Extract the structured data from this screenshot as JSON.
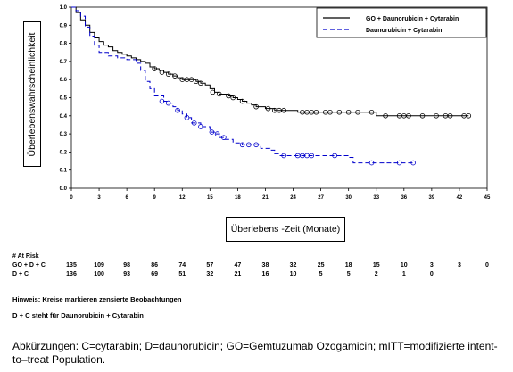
{
  "chart_data": {
    "type": "line",
    "xlabel": "Überlebens -Zeit (Monate)",
    "ylabel": "Überlebenswahrscheinlichkeit",
    "xlim": [
      0,
      45
    ],
    "ylim": [
      0,
      1.0
    ],
    "xticks": [
      0,
      3,
      6,
      9,
      12,
      15,
      18,
      21,
      24,
      27,
      30,
      33,
      36,
      39,
      42,
      45
    ],
    "yticks": [
      0.0,
      0.1,
      0.2,
      0.3,
      0.4,
      0.5,
      0.6,
      0.7,
      0.8,
      0.9,
      1.0
    ],
    "legend_position": "top-right",
    "grid": false,
    "series": [
      {
        "name": "GO + Daunorubicin + Cytarabin",
        "style": "solid",
        "color": "#000000",
        "steps": [
          [
            0,
            1.0
          ],
          [
            0.5,
            0.97
          ],
          [
            1,
            0.93
          ],
          [
            1.5,
            0.9
          ],
          [
            2,
            0.86
          ],
          [
            2.5,
            0.83
          ],
          [
            3,
            0.81
          ],
          [
            3.5,
            0.79
          ],
          [
            4,
            0.78
          ],
          [
            4.5,
            0.76
          ],
          [
            5,
            0.75
          ],
          [
            5.5,
            0.74
          ],
          [
            6,
            0.73
          ],
          [
            6.5,
            0.72
          ],
          [
            7,
            0.71
          ],
          [
            7.5,
            0.7
          ],
          [
            8,
            0.69
          ],
          [
            8.5,
            0.67
          ],
          [
            9,
            0.66
          ],
          [
            9.5,
            0.65
          ],
          [
            10,
            0.64
          ],
          [
            10.5,
            0.63
          ],
          [
            11,
            0.62
          ],
          [
            11.5,
            0.61
          ],
          [
            12,
            0.6
          ],
          [
            13.5,
            0.59
          ],
          [
            14,
            0.58
          ],
          [
            14.5,
            0.57
          ],
          [
            15,
            0.55
          ],
          [
            15.5,
            0.53
          ],
          [
            16,
            0.52
          ],
          [
            17,
            0.51
          ],
          [
            17.5,
            0.5
          ],
          [
            18,
            0.49
          ],
          [
            18.5,
            0.48
          ],
          [
            19,
            0.47
          ],
          [
            19.5,
            0.46
          ],
          [
            20,
            0.45
          ],
          [
            21,
            0.44
          ],
          [
            22,
            0.43
          ],
          [
            24.5,
            0.42
          ],
          [
            33,
            0.4
          ],
          [
            43,
            0.4
          ]
        ],
        "censored": [
          [
            9,
            0.66
          ],
          [
            9.8,
            0.64
          ],
          [
            10.5,
            0.63
          ],
          [
            11.2,
            0.62
          ],
          [
            12,
            0.6
          ],
          [
            12.5,
            0.6
          ],
          [
            13,
            0.6
          ],
          [
            13.5,
            0.59
          ],
          [
            14,
            0.58
          ],
          [
            15.3,
            0.53
          ],
          [
            16,
            0.52
          ],
          [
            17,
            0.51
          ],
          [
            17.5,
            0.5
          ],
          [
            18.5,
            0.48
          ],
          [
            20,
            0.45
          ],
          [
            21.3,
            0.44
          ],
          [
            22,
            0.43
          ],
          [
            22.5,
            0.43
          ],
          [
            23,
            0.43
          ],
          [
            25,
            0.42
          ],
          [
            25.5,
            0.42
          ],
          [
            26,
            0.42
          ],
          [
            26.5,
            0.42
          ],
          [
            27.5,
            0.42
          ],
          [
            28,
            0.42
          ],
          [
            29,
            0.42
          ],
          [
            30,
            0.42
          ],
          [
            31,
            0.42
          ],
          [
            32.5,
            0.42
          ],
          [
            34,
            0.4
          ],
          [
            35.5,
            0.4
          ],
          [
            36,
            0.4
          ],
          [
            36.5,
            0.4
          ],
          [
            38,
            0.4
          ],
          [
            39.5,
            0.4
          ],
          [
            40.5,
            0.4
          ],
          [
            41,
            0.4
          ],
          [
            42.5,
            0.4
          ],
          [
            43,
            0.4
          ]
        ]
      },
      {
        "name": "Daunorubicin + Cytarabin",
        "style": "dashed",
        "color": "#0000cc",
        "steps": [
          [
            0,
            1.0
          ],
          [
            0.5,
            0.98
          ],
          [
            1,
            0.95
          ],
          [
            1.5,
            0.89
          ],
          [
            2,
            0.84
          ],
          [
            2.5,
            0.79
          ],
          [
            3,
            0.75
          ],
          [
            4,
            0.73
          ],
          [
            5,
            0.72
          ],
          [
            6,
            0.71
          ],
          [
            7,
            0.69
          ],
          [
            7.5,
            0.65
          ],
          [
            8,
            0.59
          ],
          [
            8.5,
            0.55
          ],
          [
            9,
            0.51
          ],
          [
            10,
            0.48
          ],
          [
            10.5,
            0.47
          ],
          [
            11,
            0.45
          ],
          [
            11.5,
            0.43
          ],
          [
            12,
            0.41
          ],
          [
            12.5,
            0.39
          ],
          [
            13,
            0.36
          ],
          [
            14,
            0.34
          ],
          [
            15,
            0.31
          ],
          [
            15.5,
            0.3
          ],
          [
            16,
            0.28
          ],
          [
            16.5,
            0.27
          ],
          [
            17.5,
            0.25
          ],
          [
            18.5,
            0.24
          ],
          [
            20.5,
            0.22
          ],
          [
            21.5,
            0.21
          ],
          [
            22,
            0.19
          ],
          [
            22.5,
            0.18
          ],
          [
            30,
            0.17
          ],
          [
            30.5,
            0.14
          ],
          [
            37,
            0.14
          ]
        ],
        "censored": [
          [
            9.8,
            0.48
          ],
          [
            10.5,
            0.47
          ],
          [
            11.5,
            0.43
          ],
          [
            12.5,
            0.39
          ],
          [
            13.3,
            0.36
          ],
          [
            14,
            0.34
          ],
          [
            15.2,
            0.31
          ],
          [
            15.8,
            0.3
          ],
          [
            16.5,
            0.28
          ],
          [
            18.5,
            0.24
          ],
          [
            19.2,
            0.24
          ],
          [
            20,
            0.24
          ],
          [
            23,
            0.18
          ],
          [
            24.5,
            0.18
          ],
          [
            25,
            0.18
          ],
          [
            25.5,
            0.18
          ],
          [
            26,
            0.18
          ],
          [
            28.5,
            0.18
          ],
          [
            32.5,
            0.14
          ],
          [
            35.5,
            0.14
          ],
          [
            37,
            0.14
          ]
        ]
      }
    ]
  },
  "risk_table": {
    "title": "# At Risk",
    "times": [
      0,
      3,
      6,
      9,
      12,
      15,
      18,
      21,
      24,
      27,
      30,
      33,
      36,
      39,
      42,
      45
    ],
    "rows": [
      {
        "label": "GO + D + C",
        "values": [
          "135",
          "109",
          "98",
          "86",
          "74",
          "57",
          "47",
          "38",
          "32",
          "25",
          "18",
          "15",
          "10",
          "3",
          "3",
          "0"
        ]
      },
      {
        "label": "D + C",
        "values": [
          "136",
          "100",
          "93",
          "69",
          "51",
          "32",
          "21",
          "16",
          "10",
          "5",
          "5",
          "2",
          "1",
          "0",
          "",
          ""
        ]
      }
    ]
  },
  "notes": {
    "hint": "Hinweis: Kreise markieren zensierte Beobachtungen",
    "abbrev_dc": "D + C steht für Daunorubicin + Cytarabin"
  },
  "footer": {
    "abbreviations": "Abkürzungen: C=cytarabin; D=daunorubicin; GO=Gemtuzumab Ozogamicin; mITT=modifizierte intent-to–treat Population."
  }
}
